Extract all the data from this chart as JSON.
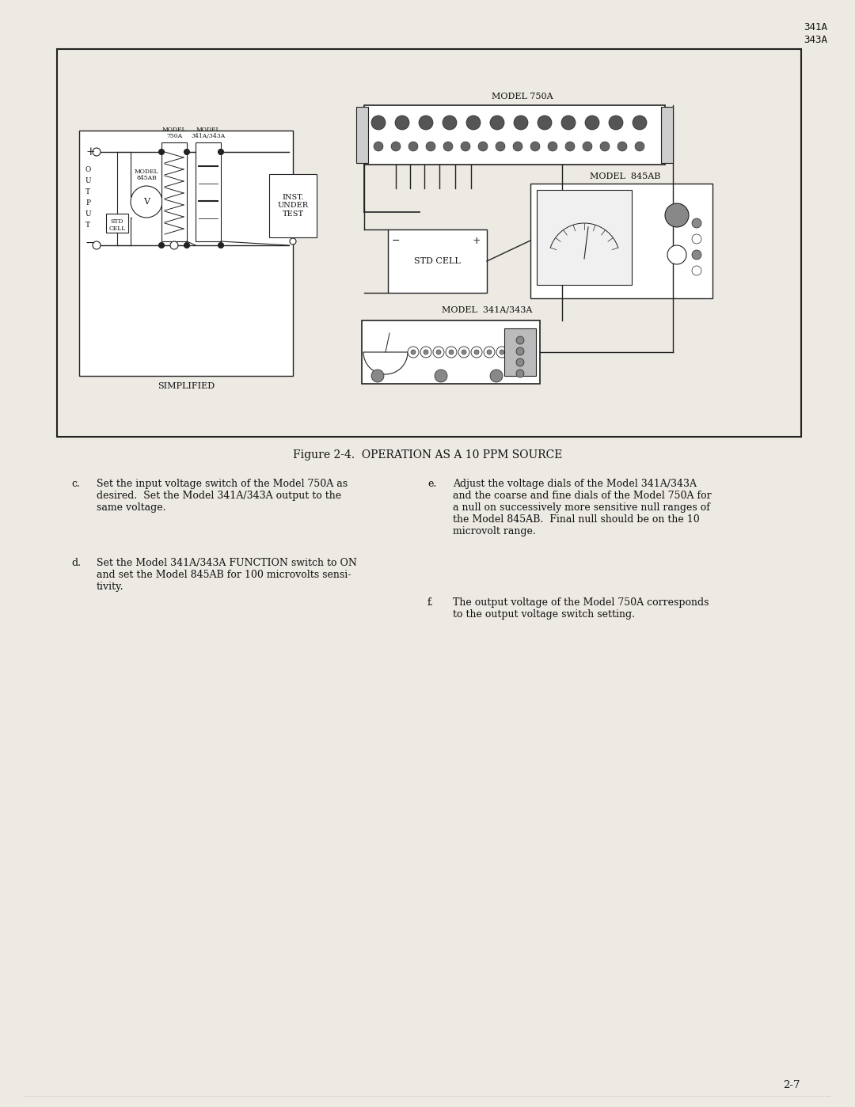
{
  "bg_color": "#ede9e3",
  "line_color": "#222222",
  "text_color": "#111111",
  "white": "#ffffff",
  "header_line1": "341A",
  "header_line2": "343A",
  "figure_caption": "Figure 2-4.  OPERATION AS A 10 PPM SOURCE",
  "page_number": "2-7",
  "text_c": "Set the input voltage switch of the Model 750A as\ndesired.  Set the Model 341A/343A output to the\nsame voltage.",
  "text_d": "Set the Model 341A/343A FUNCTION switch to ON\nand set the Model 845AB for 100 microvolts sensi-\ntivity.",
  "text_e": "Adjust the voltage dials of the Model 341A/343A\nand the coarse and fine dials of the Model 750A for\na null on successively more sensitive null ranges of\nthe Model 845AB.  Final null should be on the 10\nmicrovolt range.",
  "text_f": "The output voltage of the Model 750A corresponds\nto the output voltage switch setting."
}
